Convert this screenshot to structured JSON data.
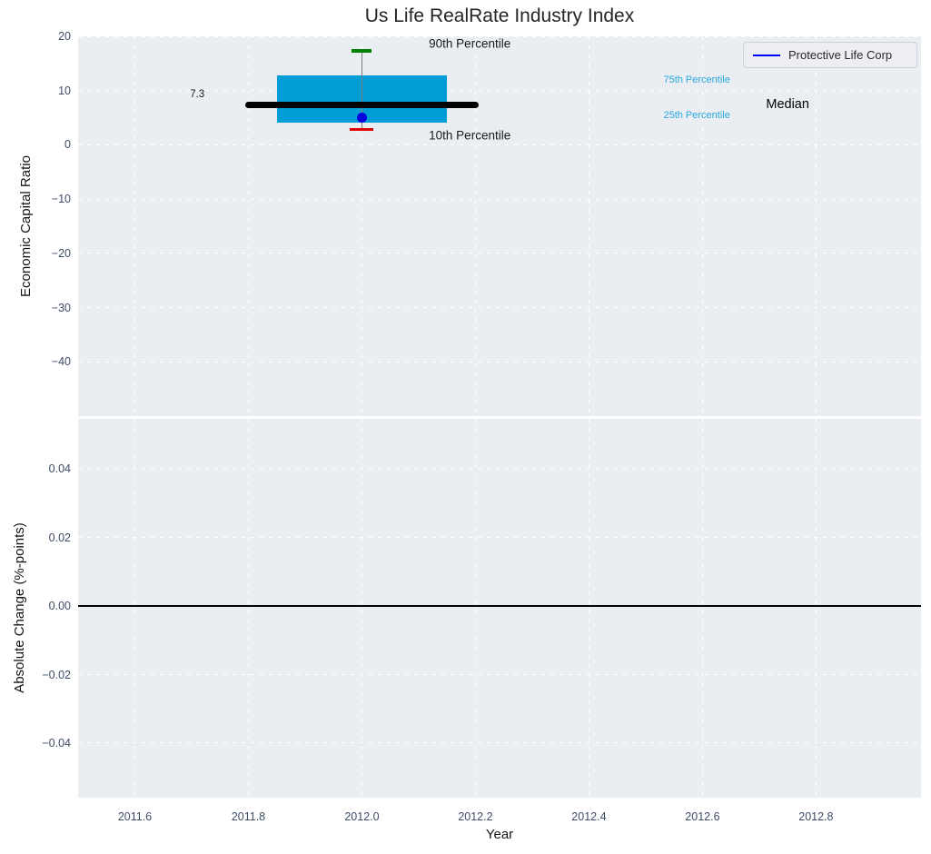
{
  "figure": {
    "title": "Us Life RealRate Industry Index",
    "xlabel": "Year"
  },
  "legend": {
    "label": "Protective Life Corp",
    "line_color": "#0000ff"
  },
  "colors": {
    "plot_bg": "#eaedf1",
    "tick_text": "#3d4c66",
    "box_fill": "#009dd6",
    "median_line": "#000000",
    "whisker": "#7a7a7a",
    "cap_90th": "#008000",
    "cap_10th": "#e50000",
    "company_point": "#0000dd",
    "percentile_text": "#29a8dc",
    "zero_line": "#000000"
  },
  "xticks": [
    {
      "v": 2011.6,
      "label": "2011.6"
    },
    {
      "v": 2011.8,
      "label": "2011.8"
    },
    {
      "v": 2012.0,
      "label": "2012.0"
    },
    {
      "v": 2012.2,
      "label": "2012.2"
    },
    {
      "v": 2012.4,
      "label": "2012.4"
    },
    {
      "v": 2012.6,
      "label": "2012.6"
    },
    {
      "v": 2012.8,
      "label": "2012.8"
    }
  ],
  "chart_data": [
    {
      "type": "boxplot",
      "title": "Us Life RealRate Industry Index",
      "ylabel": "Economic Capital Ratio",
      "xlabel": "Year",
      "xlim": [
        2011.5,
        2012.985
      ],
      "ylim": [
        -50,
        20
      ],
      "grid": "white-dashed",
      "yticks": [
        {
          "v": 20,
          "label": "20"
        },
        {
          "v": 10,
          "label": "10"
        },
        {
          "v": 0,
          "label": "0"
        },
        {
          "v": -10,
          "label": "−10"
        },
        {
          "v": -20,
          "label": "−20"
        },
        {
          "v": -30,
          "label": "−30"
        },
        {
          "v": -40,
          "label": "−40"
        }
      ],
      "box": {
        "year": 2012.0,
        "p90": 17.3,
        "p75": 12.8,
        "median": 7.3,
        "p25": 4.1,
        "p10": 2.8,
        "median_label": "7.3",
        "box_half_width_years": 0.15,
        "median_line_half_width_years": 0.205
      },
      "series": [
        {
          "name": "Protective Life Corp",
          "type": "point",
          "x": [
            2012.0
          ],
          "y": [
            5.0
          ]
        }
      ],
      "annotations": [
        {
          "text": "90th Percentile",
          "x": 2012.19,
          "y": 18.6,
          "color": "#1a1a1a",
          "size": 13.5
        },
        {
          "text": "10th Percentile",
          "x": 2012.19,
          "y": 1.75,
          "color": "#1a1a1a",
          "size": 13.5
        },
        {
          "text": "75th Percentile",
          "x": 2012.59,
          "y": 12.0,
          "color": "#29a8dc",
          "size": 11
        },
        {
          "text": "25th Percentile",
          "x": 2012.59,
          "y": 5.4,
          "color": "#29a8dc",
          "size": 11
        },
        {
          "text": "Median",
          "x": 2012.75,
          "y": 7.4,
          "color": "#000000",
          "size": 14.5
        },
        {
          "text": "7.3",
          "x": 2011.71,
          "y": 9.2,
          "color": "#1a1a1a",
          "size": 11.5
        }
      ]
    },
    {
      "type": "line",
      "ylabel": "Absolute Change (%-points)",
      "xlabel": "Year",
      "xlim": [
        2011.5,
        2012.985
      ],
      "ylim": [
        -0.0559,
        0.0546
      ],
      "grid": "white-dashed",
      "yticks": [
        {
          "v": 0.04,
          "label": "0.04"
        },
        {
          "v": 0.02,
          "label": "0.02"
        },
        {
          "v": 0.0,
          "label": "0.00"
        },
        {
          "v": -0.02,
          "label": "−0.02"
        },
        {
          "v": -0.04,
          "label": "−0.04"
        }
      ],
      "zero_line": 0.0,
      "series": []
    }
  ]
}
